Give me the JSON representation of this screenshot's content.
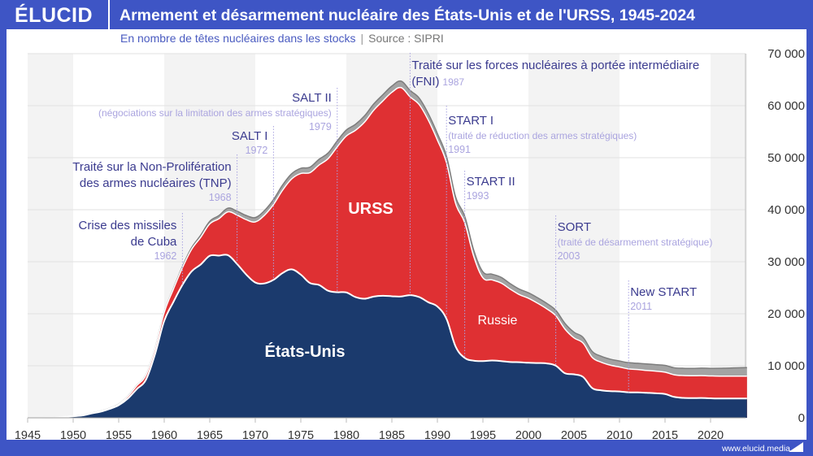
{
  "header": {
    "logo": "ÉLUCID",
    "title": "Armement et désarmement nucléaire des États-Unis et de l'URSS, 1945-2024",
    "subtitle": "En nombre de têtes nucléaires dans les stocks",
    "separator": "|",
    "source": "Source : SIPRI"
  },
  "footer": {
    "url": "www.elucid.media"
  },
  "colors": {
    "frame": "#3e55c5",
    "usa": "#1b3a6d",
    "ussr": "#df3033",
    "others": "#a3a3a3",
    "annotation_title": "#3b3b8f",
    "annotation_sub": "#aaa4df"
  },
  "chart_data": {
    "type": "area",
    "stacked": true,
    "title": "Armement et désarmement nucléaire des États-Unis et de l'URSS, 1945-2024",
    "subtitle": "En nombre de têtes nucléaires dans les stocks",
    "xlim": [
      1945,
      2024
    ],
    "ylim": [
      0,
      70000
    ],
    "x_ticks": [
      1945,
      1950,
      1955,
      1960,
      1965,
      1970,
      1975,
      1980,
      1985,
      1990,
      1995,
      2000,
      2005,
      2010,
      2015,
      2020
    ],
    "y_ticks": [
      0,
      10000,
      20000,
      30000,
      40000,
      50000,
      60000,
      70000
    ],
    "y_tick_labels": [
      "0",
      "10 000",
      "20 000",
      "30 000",
      "40 000",
      "50 000",
      "60 000",
      "70 000"
    ],
    "y_axis_side": "right",
    "grid": true,
    "legend": "none",
    "x": [
      1945,
      1946,
      1947,
      1948,
      1949,
      1950,
      1951,
      1952,
      1953,
      1954,
      1955,
      1956,
      1957,
      1958,
      1959,
      1960,
      1961,
      1962,
      1963,
      1964,
      1965,
      1966,
      1967,
      1968,
      1969,
      1970,
      1971,
      1972,
      1973,
      1974,
      1975,
      1976,
      1977,
      1978,
      1979,
      1980,
      1981,
      1982,
      1983,
      1984,
      1985,
      1986,
      1987,
      1988,
      1989,
      1990,
      1991,
      1992,
      1993,
      1994,
      1995,
      1996,
      1997,
      1998,
      1999,
      2000,
      2001,
      2002,
      2003,
      2004,
      2005,
      2006,
      2007,
      2008,
      2009,
      2010,
      2011,
      2012,
      2013,
      2014,
      2015,
      2016,
      2017,
      2018,
      2019,
      2020,
      2021,
      2022,
      2023,
      2024
    ],
    "series": [
      {
        "name": "États-Unis",
        "values": [
          2,
          9,
          13,
          50,
          170,
          299,
          438,
          841,
          1169,
          1703,
          2422,
          3692,
          5543,
          7345,
          12298,
          18638,
          22229,
          25540,
          28133,
          29463,
          31139,
          31175,
          31255,
          29561,
          27552,
          26008,
          25830,
          26516,
          27835,
          28537,
          27519,
          25914,
          25542,
          24418,
          24138,
          24104,
          23208,
          22886,
          23305,
          23459,
          23368,
          23317,
          23575,
          23205,
          22217,
          21392,
          19008,
          13708,
          11511,
          10979,
          10904,
          11011,
          10903,
          10732,
          10685,
          10577,
          10526,
          10457,
          10027,
          8570,
          8360,
          7853,
          5709,
          5273,
          5113,
          5066,
          4897,
          4881,
          4804,
          4717,
          4571,
          4018,
          3822,
          3785,
          3805,
          3750,
          3708,
          3708,
          3708,
          3708
        ]
      },
      {
        "name": "URSS / Russie",
        "values": [
          0,
          0,
          0,
          0,
          1,
          5,
          25,
          50,
          120,
          150,
          200,
          426,
          660,
          869,
          1060,
          1605,
          2471,
          3322,
          4238,
          5221,
          6129,
          7089,
          8339,
          9399,
          10538,
          11643,
          13092,
          14478,
          15915,
          17385,
          19443,
          21205,
          23044,
          25393,
          27935,
          30062,
          32049,
          33952,
          35804,
          37431,
          39197,
          40159,
          38107,
          37000,
          35000,
          32000,
          30000,
          27500,
          26000,
          20000,
          16000,
          15500,
          15000,
          14000,
          13000,
          12400,
          11500,
          10500,
          9600,
          8500,
          7000,
          6500,
          5900,
          5400,
          5000,
          4700,
          4500,
          4400,
          4300,
          4250,
          4200,
          4250,
          4300,
          4300,
          4300,
          4300,
          4300,
          4300,
          4300,
          4300
        ]
      },
      {
        "values": [
          0,
          0,
          0,
          0,
          0,
          0,
          0,
          0,
          0,
          0,
          10,
          20,
          20,
          30,
          30,
          40,
          100,
          200,
          300,
          400,
          500,
          600,
          700,
          750,
          800,
          850,
          900,
          950,
          1000,
          1000,
          1000,
          1050,
          1100,
          1100,
          1150,
          1150,
          1150,
          1200,
          1200,
          1200,
          1200,
          1250,
          1250,
          1250,
          1250,
          1250,
          1250,
          1250,
          1250,
          1200,
          1150,
          1100,
          1100,
          1050,
          1050,
          1050,
          1050,
          1050,
          1050,
          1100,
          1100,
          1100,
          1150,
          1150,
          1150,
          1150,
          1200,
          1200,
          1250,
          1250,
          1300,
          1350,
          1400,
          1400,
          1450,
          1450,
          1500,
          1550,
          1600,
          1650
        ]
      }
    ],
    "area_labels": [
      "États-Unis",
      "URSS",
      "Russie"
    ],
    "annotations": [
      {
        "year": 1962,
        "lines": [
          "Crise des missiles",
          "de Cuba"
        ],
        "sub": "",
        "date": "1962"
      },
      {
        "year": 1968,
        "lines": [
          "Traité sur la Non-Prolifération",
          "des armes nucléaires (TNP)"
        ],
        "sub": "",
        "date": "1968"
      },
      {
        "year": 1972,
        "lines": [
          "SALT I"
        ],
        "sub": "",
        "date": "1972"
      },
      {
        "year": 1979,
        "lines": [
          "SALT II"
        ],
        "sub": "(négociations sur la limitation des armes stratégiques)",
        "date": "1979"
      },
      {
        "year": 1987,
        "lines": [
          "Traité sur les forces nucléaires à portée intermédiaire",
          "(FNI)"
        ],
        "sub": "",
        "date": "1987"
      },
      {
        "year": 1991,
        "lines": [
          "START I"
        ],
        "sub": "(traité de réduction des armes stratégiques)",
        "date": "1991"
      },
      {
        "year": 1993,
        "lines": [
          "START II"
        ],
        "sub": "",
        "date": "1993"
      },
      {
        "year": 2003,
        "lines": [
          "SORT"
        ],
        "sub": "(traité de désarmement stratégique)",
        "date": "2003"
      },
      {
        "year": 2011,
        "lines": [
          "New START"
        ],
        "sub": "",
        "date": "2011"
      }
    ]
  }
}
